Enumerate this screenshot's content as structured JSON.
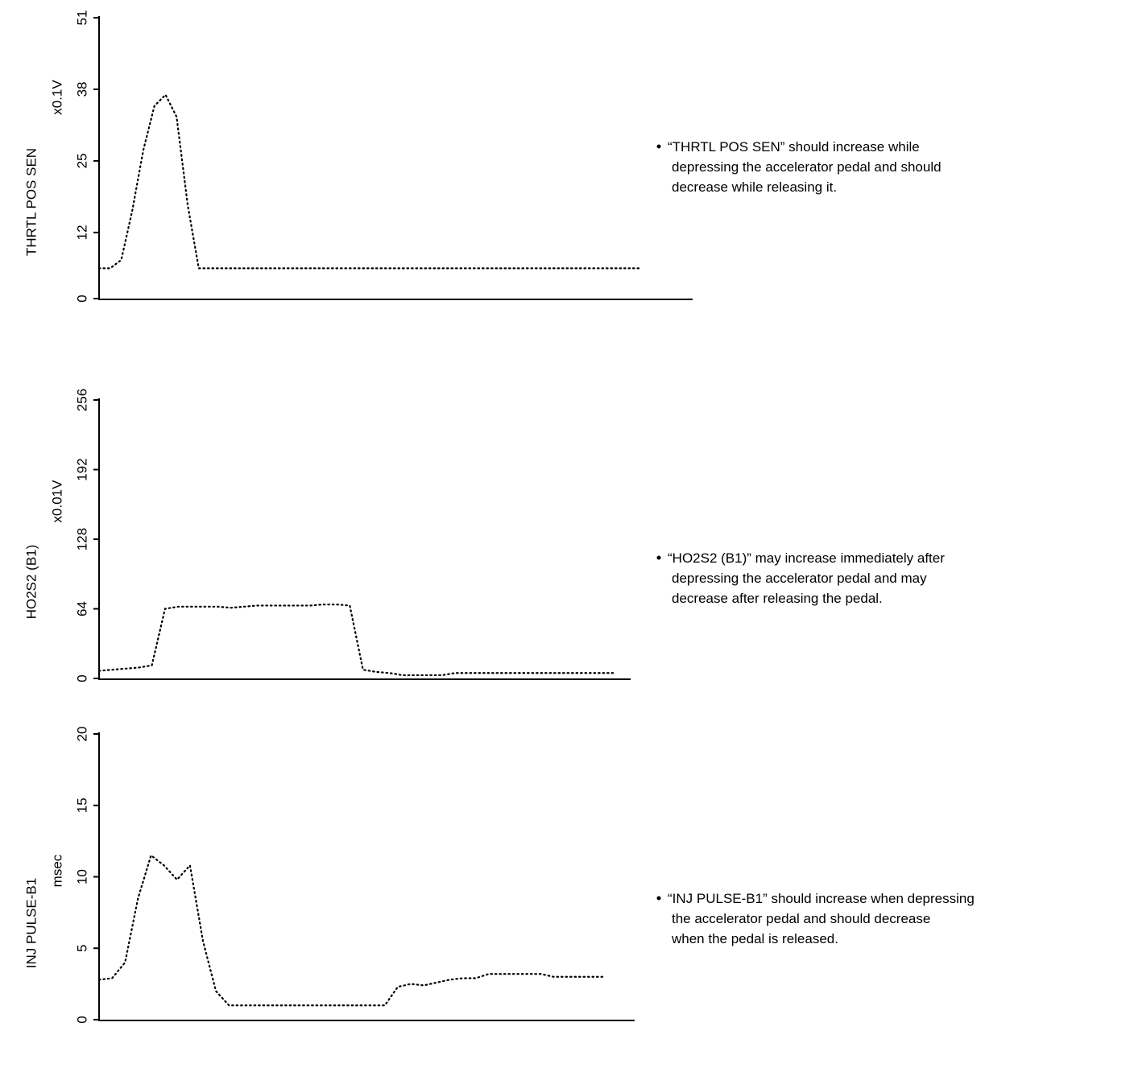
{
  "chart_data": [
    {
      "type": "line",
      "ylabel": "THRTL POS SEN",
      "unit": "x0.1V",
      "ylim": [
        0,
        51
      ],
      "yticks": [
        0,
        12,
        25,
        38,
        51
      ],
      "color": "#000000",
      "values": [
        5.5,
        5.5,
        7,
        16,
        27,
        35,
        37,
        33,
        17,
        5.5,
        5.5,
        5.5,
        5.5,
        5.5,
        5.5,
        5.5,
        5.5,
        5.5,
        5.5,
        5.5,
        5.5,
        5.5,
        5.5,
        5.5,
        5.5,
        5.5,
        5.5,
        5.5,
        5.5,
        5.5,
        5.5,
        5.5,
        5.5,
        5.5,
        5.5,
        5.5,
        5.5,
        5.5,
        5.5,
        5.5,
        5.5,
        5.5,
        5.5,
        5.5,
        5.5,
        5.5,
        5.5,
        5.5,
        5.5,
        5.5
      ],
      "note": [
        "“THRTL POS SEN” should increase while",
        "depressing the accelerator pedal and should",
        "decrease while releasing it."
      ]
    },
    {
      "type": "line",
      "ylabel": "HO2S2 (B1)",
      "unit": "x0.01V",
      "ylim": [
        0,
        256
      ],
      "yticks": [
        0,
        64,
        128,
        192,
        256
      ],
      "color": "#000000",
      "values": [
        7,
        8,
        9,
        10,
        12,
        64,
        66,
        66,
        66,
        66,
        65,
        66,
        67,
        67,
        67,
        67,
        67,
        68,
        68,
        67,
        8,
        6,
        5,
        3,
        3,
        3,
        3,
        5,
        5,
        5,
        5,
        5,
        5,
        5,
        5,
        5,
        5,
        5,
        5,
        5
      ],
      "note": [
        "“HO2S2 (B1)” may increase immediately after",
        "depressing the accelerator pedal and may",
        "decrease after releasing the pedal."
      ]
    },
    {
      "type": "line",
      "ylabel": "INJ PULSE-B1",
      "unit": "msec",
      "ylim": [
        0,
        20
      ],
      "yticks": [
        0,
        5,
        10,
        15,
        20
      ],
      "color": "#000000",
      "values": [
        2.8,
        2.9,
        4,
        8.5,
        11.5,
        10.8,
        9.8,
        10.8,
        5.5,
        2,
        1,
        1,
        1,
        1,
        1,
        1,
        1,
        1,
        1,
        1,
        1,
        1,
        1,
        2.3,
        2.5,
        2.4,
        2.6,
        2.8,
        2.9,
        2.9,
        3.2,
        3.2,
        3.2,
        3.2,
        3.2,
        3,
        3,
        3,
        3,
        3
      ],
      "note": [
        "“INJ PULSE-B1” should increase when depressing",
        "the accelerator pedal and should decrease",
        "when the pedal is released."
      ]
    }
  ]
}
